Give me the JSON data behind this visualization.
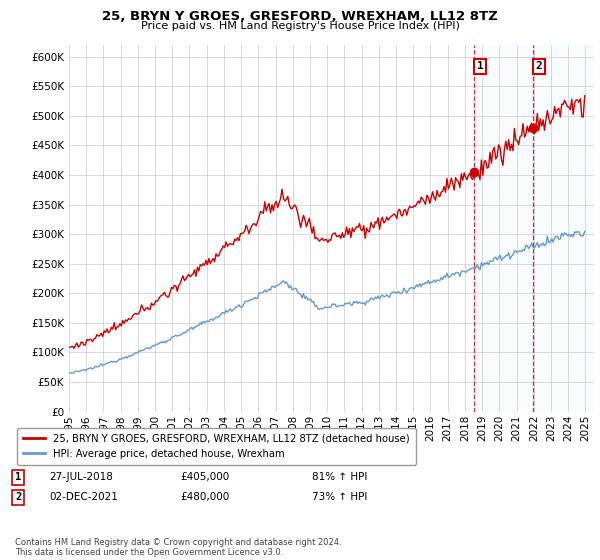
{
  "title": "25, BRYN Y GROES, GRESFORD, WREXHAM, LL12 8TZ",
  "subtitle": "Price paid vs. HM Land Registry's House Price Index (HPI)",
  "legend_line1": "25, BRYN Y GROES, GRESFORD, WREXHAM, LL12 8TZ (detached house)",
  "legend_line2": "HPI: Average price, detached house, Wrexham",
  "annotation1_date": "27-JUL-2018",
  "annotation1_price": "£405,000",
  "annotation1_hpi": "81% ↑ HPI",
  "annotation2_date": "02-DEC-2021",
  "annotation2_price": "£480,000",
  "annotation2_hpi": "73% ↑ HPI",
  "copyright_text": "Contains HM Land Registry data © Crown copyright and database right 2024.\nThis data is licensed under the Open Government Licence v3.0.",
  "hpi_color": "#6699cc",
  "price_color": "#cc0000",
  "vline_color": "#cc0000",
  "shade_color": "#ddeeff",
  "background_color": "#ffffff",
  "grid_color": "#cccccc",
  "ylim": [
    0,
    620000
  ],
  "yticks": [
    0,
    50000,
    100000,
    150000,
    200000,
    250000,
    300000,
    350000,
    400000,
    450000,
    500000,
    550000,
    600000
  ],
  "year_start": 1995,
  "year_end": 2025,
  "t1_year": 2018.54,
  "t2_year": 2021.92,
  "price1": 405000,
  "price2": 480000
}
